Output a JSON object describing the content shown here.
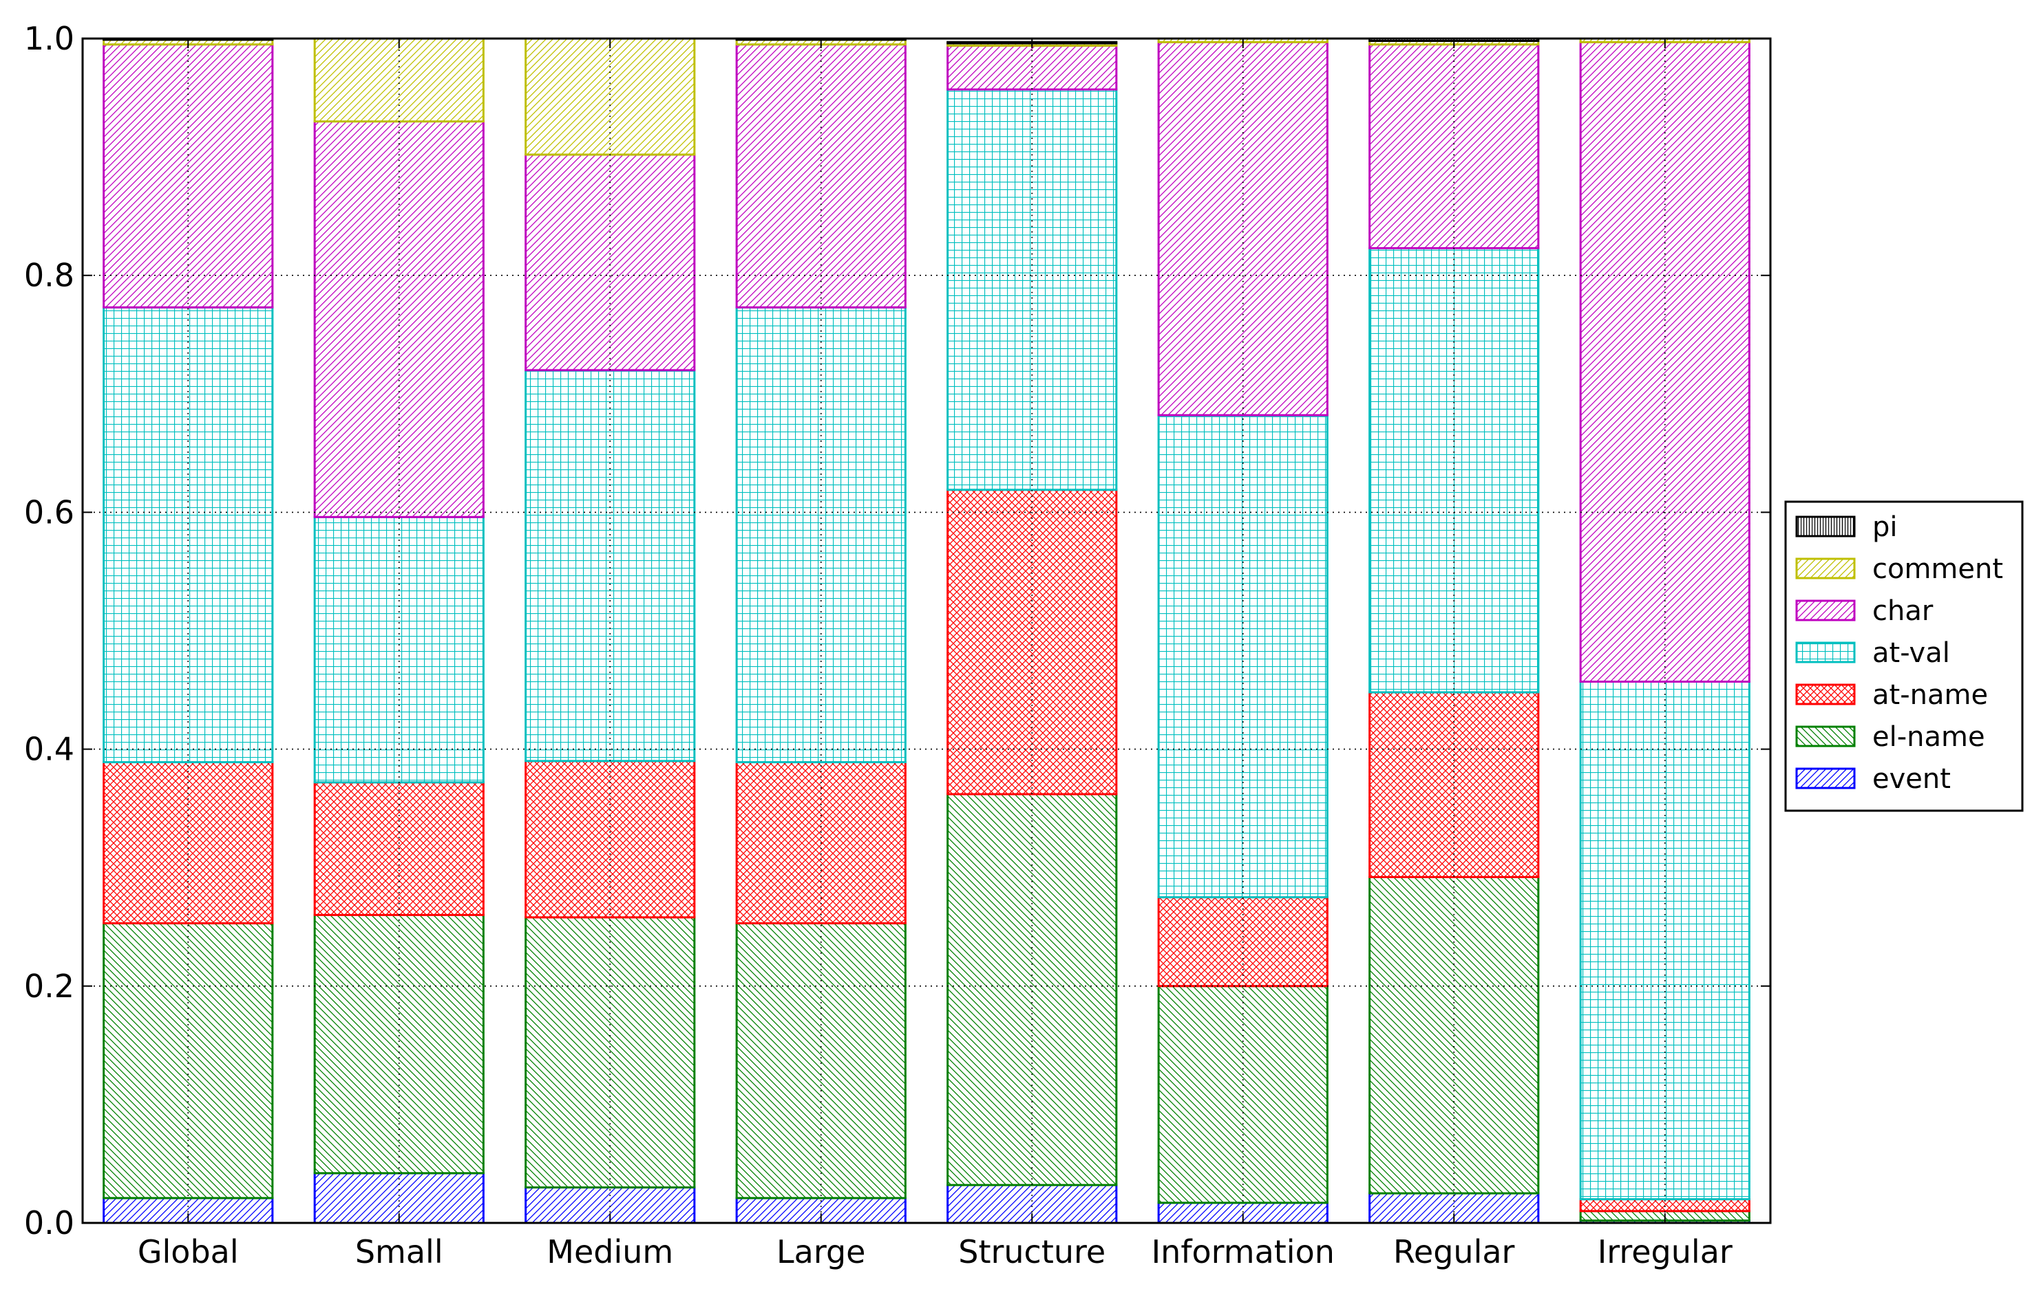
{
  "chart_data": {
    "type": "bar",
    "stacked": true,
    "title": "",
    "xlabel": "",
    "ylabel": "",
    "ylim": [
      0,
      1.0
    ],
    "yticks": [
      "0.0",
      "0.2",
      "0.4",
      "0.6",
      "0.8",
      "1.0"
    ],
    "grid": true,
    "legend_position": "right",
    "categories": [
      "Global",
      "Small",
      "Medium",
      "Large",
      "Structure",
      "Information",
      "Regular",
      "Irregular"
    ],
    "series": [
      {
        "name": "event",
        "color": "#0000ff",
        "hatch": "diagonal-right",
        "values": [
          0.021,
          0.042,
          0.03,
          0.021,
          0.032,
          0.017,
          0.025,
          0.002
        ]
      },
      {
        "name": "el-name",
        "color": "#008000",
        "hatch": "diagonal-left",
        "values": [
          0.232,
          0.218,
          0.228,
          0.232,
          0.33,
          0.183,
          0.267,
          0.008
        ]
      },
      {
        "name": "at-name",
        "color": "#ff0000",
        "hatch": "cross-diagonal",
        "values": [
          0.136,
          0.112,
          0.132,
          0.136,
          0.257,
          0.075,
          0.156,
          0.01
        ]
      },
      {
        "name": "at-val",
        "color": "#00bfbf",
        "hatch": "grid",
        "values": [
          0.384,
          0.224,
          0.33,
          0.384,
          0.338,
          0.407,
          0.375,
          0.437
        ]
      },
      {
        "name": "char",
        "color": "#bf00bf",
        "hatch": "diagonal-right",
        "values": [
          0.222,
          0.334,
          0.182,
          0.222,
          0.037,
          0.315,
          0.172,
          0.54
        ]
      },
      {
        "name": "comment",
        "color": "#bfbf00",
        "hatch": "diagonal-right",
        "values": [
          0.004,
          0.07,
          0.098,
          0.004,
          0.002,
          0.003,
          0.003,
          0.003
        ]
      },
      {
        "name": "pi",
        "color": "#000000",
        "hatch": "vertical",
        "values": [
          0.001,
          0.0,
          0.0,
          0.001,
          0.001,
          0.0,
          0.002,
          0.0
        ]
      }
    ],
    "legend_order": [
      "pi",
      "comment",
      "char",
      "at-val",
      "at-name",
      "el-name",
      "event"
    ]
  }
}
